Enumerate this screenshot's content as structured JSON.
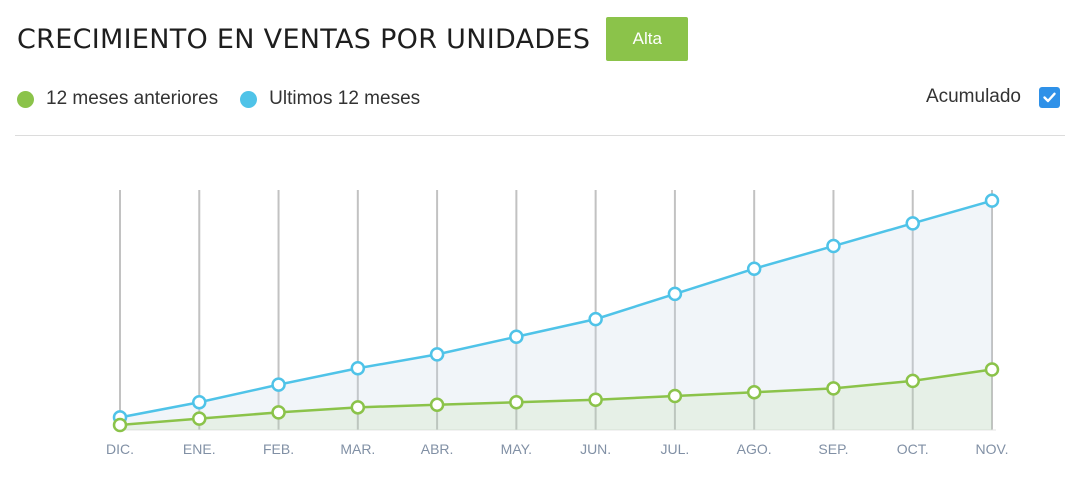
{
  "header": {
    "title": "CRECIMIENTO EN VENTAS POR UNIDADES",
    "badge": "Alta"
  },
  "legend": [
    {
      "label": "12 meses anteriores",
      "color": "#8bc34a"
    },
    {
      "label": "Ultimos 12 meses",
      "color": "#4fc3e8"
    }
  ],
  "cumulative": {
    "label": "Acumulado",
    "checked": true
  },
  "colors": {
    "grid": "#c2c2c2",
    "tick_text": "#8190a5",
    "accent": "#2f91e8"
  },
  "chart_data": {
    "type": "area",
    "title": "",
    "xlabel": "",
    "ylabel": "",
    "categories": [
      "DIC.",
      "ENE.",
      "FEB.",
      "MAR.",
      "ABR.",
      "MAY.",
      "JUN.",
      "JUL.",
      "AGO.",
      "SEP.",
      "OCT.",
      "NOV."
    ],
    "series": [
      {
        "name": "12 meses anteriores",
        "color": "#8bc34a",
        "values": [
          2,
          4.5,
          7,
          9,
          10,
          11,
          12,
          13.5,
          15,
          16.5,
          19.5,
          24
        ]
      },
      {
        "name": "Ultimos 12 meses",
        "color": "#4fc3e8",
        "values": [
          5,
          11,
          18,
          24.5,
          30,
          37,
          44,
          54,
          64,
          73,
          82,
          91
        ]
      }
    ],
    "ylim": [
      0,
      100
    ],
    "grid": "vertical",
    "y_axis_visible": false
  }
}
